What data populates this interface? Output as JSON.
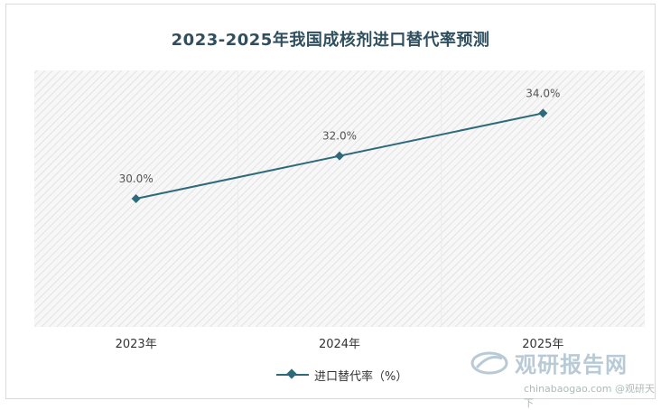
{
  "chart_data": {
    "type": "line",
    "title": "2023-2025年我国成核剂进口替代率预测",
    "categories": [
      "2023年",
      "2024年",
      "2025年"
    ],
    "series": [
      {
        "name": "进口替代率（%）",
        "values": [
          30.0,
          32.0,
          34.0
        ],
        "data_labels": [
          "30.0%",
          "32.0%",
          "34.0%"
        ],
        "color": "#2d6a7a"
      }
    ],
    "ylim": [
      24,
      36
    ],
    "grid": false,
    "legend_position": "bottom"
  },
  "watermark": {
    "brand": "观研报告网",
    "site": "chinabaogao.com",
    "credit": "@观研天下"
  },
  "colors": {
    "line": "#2d6a7a",
    "title": "#2f4f5f",
    "hatch": "#dcdcdc"
  }
}
